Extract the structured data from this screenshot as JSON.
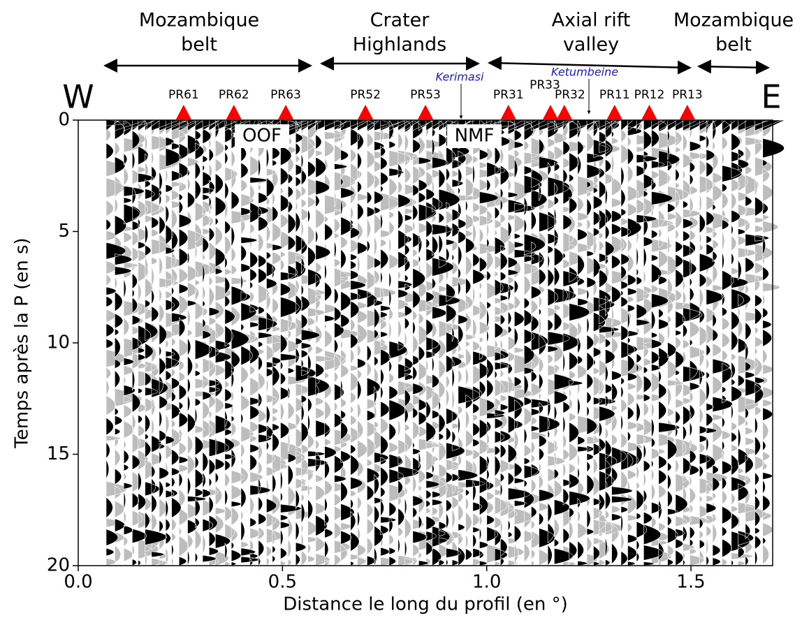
{
  "chart_data": {
    "type": "stations",
    "x_label": "Distance le long du profil (en °)",
    "y_label": "Temps après la P (en s)",
    "xlim": [
      0,
      1.7
    ],
    "xticks": [
      {
        "value": 0,
        "label": "0.0"
      },
      {
        "value": 0.5,
        "label": "0.5"
      },
      {
        "value": 1,
        "label": "1.0"
      },
      {
        "value": 1.5,
        "label": "1.5"
      }
    ],
    "ylim": [
      20,
      0
    ],
    "yticks": [
      0,
      5,
      10,
      15,
      20
    ],
    "west_label": "W",
    "east_label": "E",
    "stations": {
      "color": "#ff0000",
      "names": [
        "PR61",
        "PR62",
        "PR63",
        "PR52",
        "PR53",
        "PR31",
        "PR33",
        "PR32",
        "PR11",
        "PR12",
        "PR13"
      ],
      "x": [
        0.258,
        0.381,
        0.508,
        0.703,
        0.85,
        1.053,
        1.156,
        1.19,
        1.313,
        1.398,
        1.491
      ]
    },
    "regions": [
      {
        "lines": [
          "Mozambique",
          "belt"
        ]
      },
      {
        "lines": [
          "Crater",
          "Highlands"
        ]
      },
      {
        "lines": [
          "Axial rift",
          "valley"
        ]
      },
      {
        "lines": [
          "Mozambique",
          "belt"
        ]
      }
    ],
    "faults": [
      "OOF",
      "NMF"
    ],
    "volcanoes": [
      "Kerimasi",
      "Ketumbeine"
    ]
  }
}
